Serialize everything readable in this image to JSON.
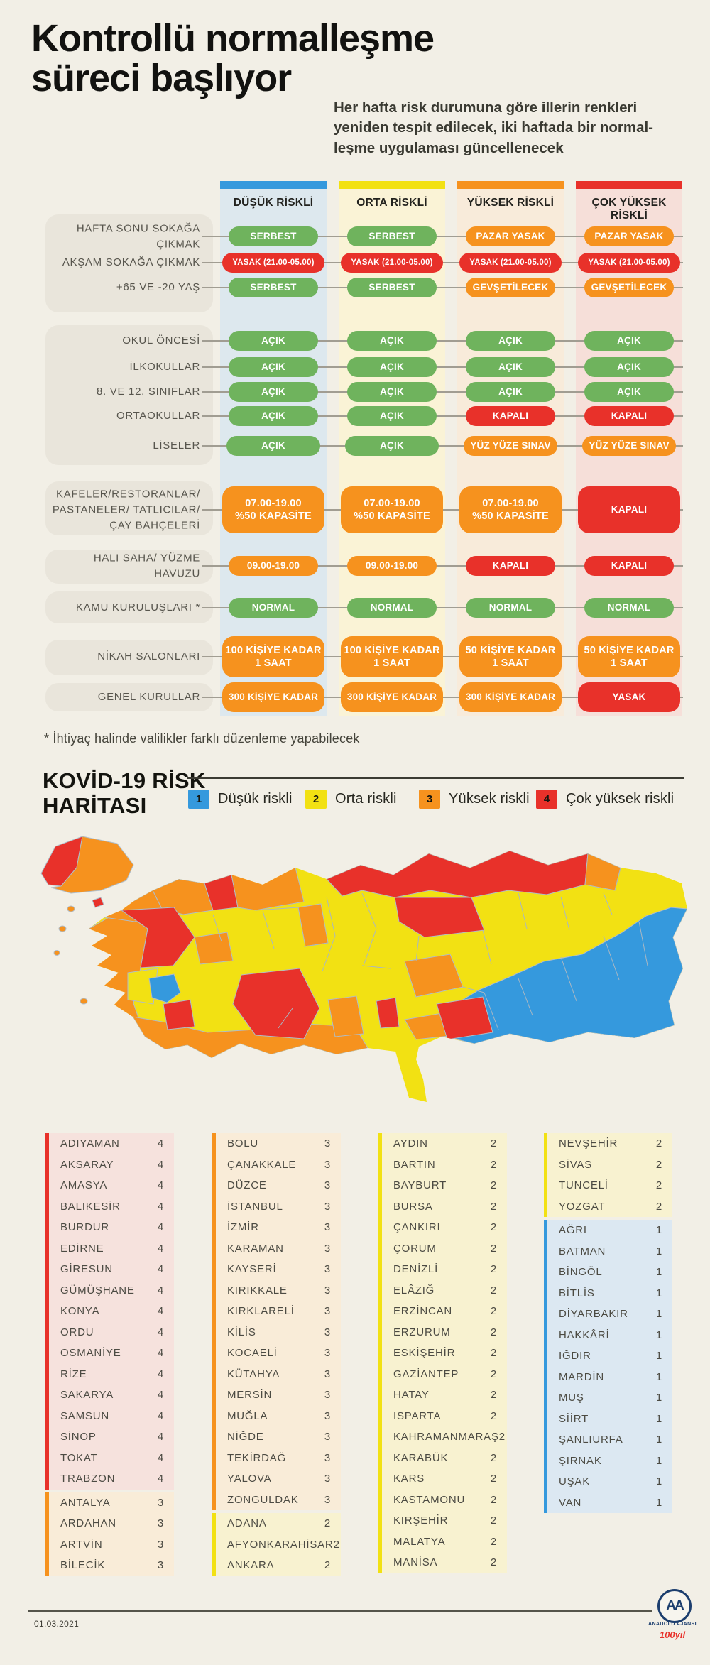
{
  "header": {
    "title_line1": "Kontrollü normalleşme",
    "title_line2": "süreci başlıyor",
    "subtitle": "Her hafta risk durumuna göre illerin renkleri\nyeniden tespit edilecek, iki haftada bir normal-\nleşme uygulaması güncellenecek"
  },
  "risk_colors": {
    "1": "#3599dd",
    "2": "#f2e113",
    "3": "#f6921e",
    "4": "#e8312a"
  },
  "pill_colors": {
    "green": "#6fb35d",
    "orange": "#f6921e",
    "red": "#e8312a"
  },
  "section_bgs": {
    "1": "#dce8f2",
    "2": "#f8f2d0",
    "3": "#f9ecd8",
    "4": "#f6e2dd"
  },
  "table": {
    "columns": [
      {
        "label": "DÜŞÜK RİSKLİ",
        "risk": "1",
        "bg": "#dde8ee"
      },
      {
        "label": "ORTA RİSKLİ",
        "risk": "2",
        "bg": "#faf3d6"
      },
      {
        "label": "YÜKSEK RİSKLİ",
        "risk": "3",
        "bg": "#f8ebda"
      },
      {
        "label": "ÇOK YÜKSEK RİSKLİ",
        "risk": "4",
        "bg": "#f6dfd9"
      }
    ],
    "rows": [
      {
        "label": "HAFTA SONU SOKAĞA ÇIKMAK",
        "cells": [
          {
            "text": "SERBEST",
            "color": "green"
          },
          {
            "text": "SERBEST",
            "color": "green"
          },
          {
            "text": "PAZAR YASAK",
            "color": "orange"
          },
          {
            "text": "PAZAR YASAK",
            "color": "orange"
          }
        ]
      },
      {
        "label": "AKŞAM SOKAĞA ÇIKMAK",
        "cells": [
          {
            "text": "YASAK (21.00-05.00)",
            "color": "red"
          },
          {
            "text": "YASAK (21.00-05.00)",
            "color": "red"
          },
          {
            "text": "YASAK (21.00-05.00)",
            "color": "red"
          },
          {
            "text": "YASAK (21.00-05.00)",
            "color": "red"
          }
        ]
      },
      {
        "label": "+65 VE -20 YAŞ",
        "cells": [
          {
            "text": "SERBEST",
            "color": "green"
          },
          {
            "text": "SERBEST",
            "color": "green"
          },
          {
            "text": "GEVŞETİLECEK",
            "color": "orange"
          },
          {
            "text": "GEVŞETİLECEK",
            "color": "orange"
          }
        ]
      },
      {
        "label": "OKUL ÖNCESİ",
        "cells": [
          {
            "text": "AÇIK",
            "color": "green"
          },
          {
            "text": "AÇIK",
            "color": "green"
          },
          {
            "text": "AÇIK",
            "color": "green"
          },
          {
            "text": "AÇIK",
            "color": "green"
          }
        ]
      },
      {
        "label": "İLKOKULLAR",
        "cells": [
          {
            "text": "AÇIK",
            "color": "green"
          },
          {
            "text": "AÇIK",
            "color": "green"
          },
          {
            "text": "AÇIK",
            "color": "green"
          },
          {
            "text": "AÇIK",
            "color": "green"
          }
        ]
      },
      {
        "label": "8. VE 12. SINIFLAR",
        "cells": [
          {
            "text": "AÇIK",
            "color": "green"
          },
          {
            "text": "AÇIK",
            "color": "green"
          },
          {
            "text": "AÇIK",
            "color": "green"
          },
          {
            "text": "AÇIK",
            "color": "green"
          }
        ]
      },
      {
        "label": "ORTAOKULLAR",
        "cells": [
          {
            "text": "AÇIK",
            "color": "green"
          },
          {
            "text": "AÇIK",
            "color": "green"
          },
          {
            "text": "KAPALI",
            "color": "red"
          },
          {
            "text": "KAPALI",
            "color": "red"
          }
        ]
      },
      {
        "label": "LİSELER",
        "cells": [
          {
            "text": "AÇIK",
            "color": "green"
          },
          {
            "text": "AÇIK",
            "color": "green"
          },
          {
            "text": "YÜZ YÜZE SINAV",
            "color": "orange"
          },
          {
            "text": "YÜZ YÜZE SINAV",
            "color": "orange"
          }
        ]
      },
      {
        "label": "KAFELER/RESTORANLAR/\nPASTANELER/ TATLICILAR/\nÇAY BAHÇELERİ",
        "cells": [
          {
            "text": "07.00-19.00\n%50 KAPASİTE",
            "color": "orange"
          },
          {
            "text": "07.00-19.00\n%50 KAPASİTE",
            "color": "orange"
          },
          {
            "text": "07.00-19.00\n%50 KAPASİTE",
            "color": "orange"
          },
          {
            "text": "KAPALI",
            "color": "red"
          }
        ]
      },
      {
        "label": "HALI SAHA/ YÜZME HAVUZU",
        "cells": [
          {
            "text": "09.00-19.00",
            "color": "orange"
          },
          {
            "text": "09.00-19.00",
            "color": "orange"
          },
          {
            "text": "KAPALI",
            "color": "red"
          },
          {
            "text": "KAPALI",
            "color": "red"
          }
        ]
      },
      {
        "label": "KAMU KURULUŞLARI *",
        "cells": [
          {
            "text": "NORMAL",
            "color": "green"
          },
          {
            "text": "NORMAL",
            "color": "green"
          },
          {
            "text": "NORMAL",
            "color": "green"
          },
          {
            "text": "NORMAL",
            "color": "green"
          }
        ]
      },
      {
        "label": "NİKAH SALONLARI",
        "cells": [
          {
            "text": "100 KİŞİYE KADAR\n1 SAAT",
            "color": "orange"
          },
          {
            "text": "100 KİŞİYE KADAR\n1 SAAT",
            "color": "orange"
          },
          {
            "text": "50 KİŞİYE KADAR\n1 SAAT",
            "color": "orange"
          },
          {
            "text": "50 KİŞİYE KADAR\n1 SAAT",
            "color": "orange"
          }
        ]
      },
      {
        "label": "GENEL KURULLAR",
        "cells": [
          {
            "text": "300 KİŞİYE KADAR",
            "color": "orange"
          },
          {
            "text": "300 KİŞİYE KADAR",
            "color": "orange"
          },
          {
            "text": "300 KİŞİYE KADAR",
            "color": "orange"
          },
          {
            "text": "YASAK",
            "color": "red"
          }
        ]
      }
    ],
    "footnote": "* İhtiyaç halinde valilikler farklı düzenleme yapabilecek"
  },
  "map_section": {
    "title_line1": "KOVİD-19 RİSK",
    "title_line2": "HARİTASI",
    "legend": [
      {
        "num": "1",
        "label": "Düşük riskli",
        "risk": "1"
      },
      {
        "num": "2",
        "label": "Orta riskli",
        "risk": "2"
      },
      {
        "num": "3",
        "label": "Yüksek riskli",
        "risk": "3"
      },
      {
        "num": "4",
        "label": "Çok yüksek riskli",
        "risk": "4"
      }
    ]
  },
  "province_lists": {
    "columns": [
      {
        "sections": [
          {
            "risk": "4",
            "provinces": [
              "ADIYAMAN",
              "AKSARAY",
              "AMASYA",
              "BALIKESİR",
              "BURDUR",
              "EDİRNE",
              "GİRESUN",
              "GÜMÜŞHANE",
              "KONYA",
              "ORDU",
              "OSMANİYE",
              "RİZE",
              "SAKARYA",
              "SAMSUN",
              "SİNOP",
              "TOKAT",
              "TRABZON"
            ]
          },
          {
            "risk": "3",
            "provinces": [
              "ANTALYA",
              "ARDAHAN",
              "ARTVİN",
              "BİLECİK"
            ]
          }
        ]
      },
      {
        "sections": [
          {
            "risk": "3",
            "provinces": [
              "BOLU",
              "ÇANAKKALE",
              "DÜZCE",
              "İSTANBUL",
              "İZMİR",
              "KARAMAN",
              "KAYSERİ",
              "KIRIKKALE",
              "KIRKLARELİ",
              "KİLİS",
              "KOCAELİ",
              "KÜTAHYA",
              "MERSİN",
              "MUĞLA",
              "NİĞDE",
              "TEKİRDAĞ",
              "YALOVA",
              "ZONGULDAK"
            ]
          },
          {
            "risk": "2",
            "provinces": [
              "ADANA",
              "AFYONKARAHİSAR",
              "ANKARA"
            ]
          }
        ]
      },
      {
        "sections": [
          {
            "risk": "2",
            "provinces": [
              "AYDIN",
              "BARTIN",
              "BAYBURT",
              "BURSA",
              "ÇANKIRI",
              "ÇORUM",
              "DENİZLİ",
              "ELÂZIĞ",
              "ERZİNCAN",
              "ERZURUM",
              "ESKİŞEHİR",
              "GAZİANTEP",
              "HATAY",
              "ISPARTA",
              "KAHRAMANMARAŞ",
              "KARABÜK",
              "KARS",
              "KASTAMONU",
              "KIRŞEHİR",
              "MALATYA",
              "MANİSA"
            ]
          }
        ]
      },
      {
        "sections": [
          {
            "risk": "2",
            "provinces": [
              "NEVŞEHİR",
              "SİVAS",
              "TUNCELİ",
              "YOZGAT"
            ]
          },
          {
            "risk": "1",
            "provinces": [
              "AĞRI",
              "BATMAN",
              "BİNGÖL",
              "BİTLİS",
              "DİYARBAKIR",
              "HAKKÂRİ",
              "IĞDIR",
              "MARDİN",
              "MUŞ",
              "SİİRT",
              "ŞANLIURFA",
              "ŞIRNAK",
              "UŞAK",
              "VAN"
            ]
          }
        ]
      }
    ]
  },
  "footer": {
    "date": "01.03.2021",
    "agency_name": "ANADOLU AJANSI",
    "logo_monogram": "AA",
    "logo_anniversary": "100yıl"
  }
}
